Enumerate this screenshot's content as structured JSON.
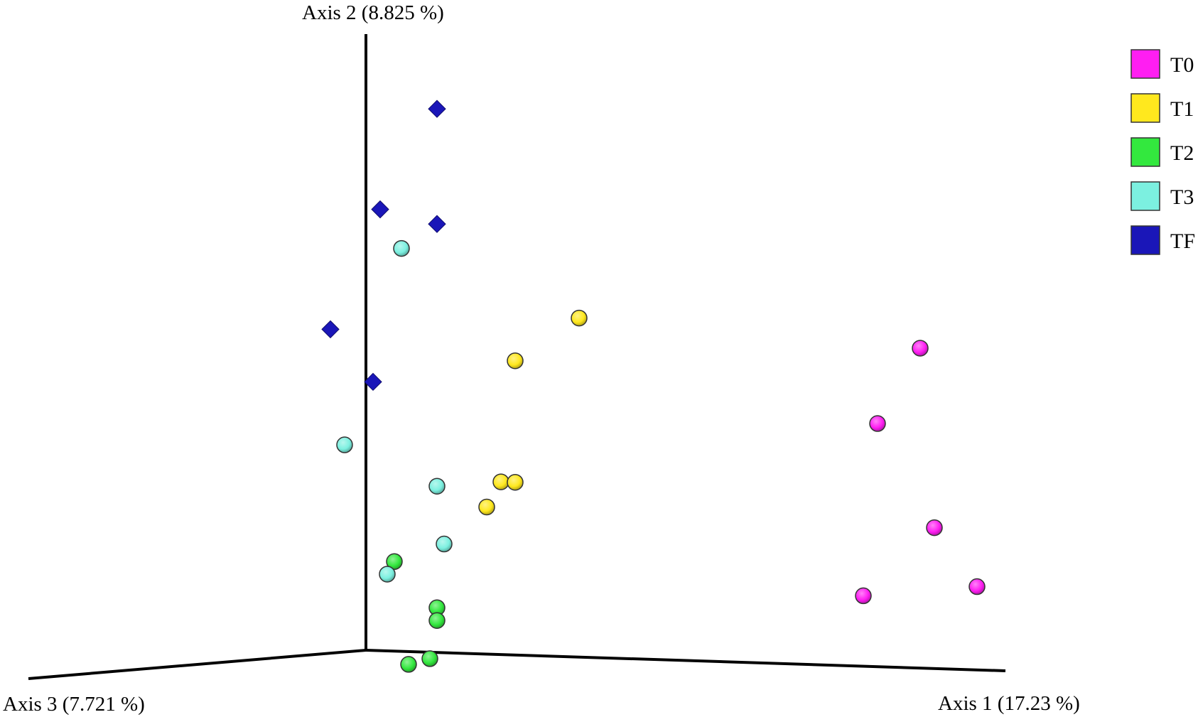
{
  "chart_data": {
    "type": "scatter",
    "projection": "3d",
    "axes": [
      {
        "label": "Axis 1 (17.23 %)"
      },
      {
        "label": "Axis 2 (8.825 %)"
      },
      {
        "label": "Axis 3 (7.721 %)"
      }
    ],
    "legend": {
      "position": "top-right"
    },
    "series": [
      {
        "name": "T0",
        "color": "#ff1ef2",
        "marker": "sphere",
        "points": [
          {
            "axis1": 0.78,
            "axis2": 0.5,
            "axis3": 0.0
          },
          {
            "axis1": 0.72,
            "axis2": 0.38,
            "axis3": 0.0
          },
          {
            "axis1": 0.8,
            "axis2": 0.22,
            "axis3": 0.0
          },
          {
            "axis1": 0.86,
            "axis2": 0.13,
            "axis3": 0.0
          },
          {
            "axis1": 0.7,
            "axis2": 0.11,
            "axis3": 0.0
          }
        ]
      },
      {
        "name": "T1",
        "color": "#ffe81e",
        "marker": "sphere",
        "points": [
          {
            "axis1": 0.3,
            "axis2": 0.53,
            "axis3": 0.0
          },
          {
            "axis1": 0.21,
            "axis2": 0.46,
            "axis3": 0.0
          },
          {
            "axis1": 0.19,
            "axis2": 0.27,
            "axis3": 0.0
          },
          {
            "axis1": 0.21,
            "axis2": 0.27,
            "axis3": 0.0
          },
          {
            "axis1": 0.17,
            "axis2": 0.23,
            "axis3": 0.0
          }
        ]
      },
      {
        "name": "T2",
        "color": "#33e83e",
        "marker": "sphere",
        "points": [
          {
            "axis1": 0.04,
            "axis2": 0.14,
            "axis3": 0.0
          },
          {
            "axis1": 0.1,
            "axis2": 0.07,
            "axis3": 0.0
          },
          {
            "axis1": 0.1,
            "axis2": 0.05,
            "axis3": 0.0
          },
          {
            "axis1": 0.09,
            "axis2": -0.01,
            "axis3": 0.0
          },
          {
            "axis1": 0.06,
            "axis2": -0.02,
            "axis3": 0.0
          }
        ]
      },
      {
        "name": "T3",
        "color": "#7cf0e0",
        "marker": "sphere",
        "points": [
          {
            "axis1": 0.05,
            "axis2": 0.63,
            "axis3": 0.0
          },
          {
            "axis1": -0.03,
            "axis2": 0.32,
            "axis3": 0.0
          },
          {
            "axis1": 0.1,
            "axis2": 0.26,
            "axis3": 0.0
          },
          {
            "axis1": 0.11,
            "axis2": 0.17,
            "axis3": 0.0
          },
          {
            "axis1": 0.03,
            "axis2": 0.12,
            "axis3": 0.0
          }
        ]
      },
      {
        "name": "TF",
        "color": "#1a16b8",
        "marker": "diamond",
        "points": [
          {
            "axis1": 0.1,
            "axis2": 0.85,
            "axis3": 0.0
          },
          {
            "axis1": 0.02,
            "axis2": 0.69,
            "axis3": 0.0
          },
          {
            "axis1": 0.1,
            "axis2": 0.67,
            "axis3": 0.0
          },
          {
            "axis1": -0.05,
            "axis2": 0.5,
            "axis3": 0.0
          },
          {
            "axis1": 0.01,
            "axis2": 0.42,
            "axis3": 0.0
          }
        ]
      }
    ]
  }
}
